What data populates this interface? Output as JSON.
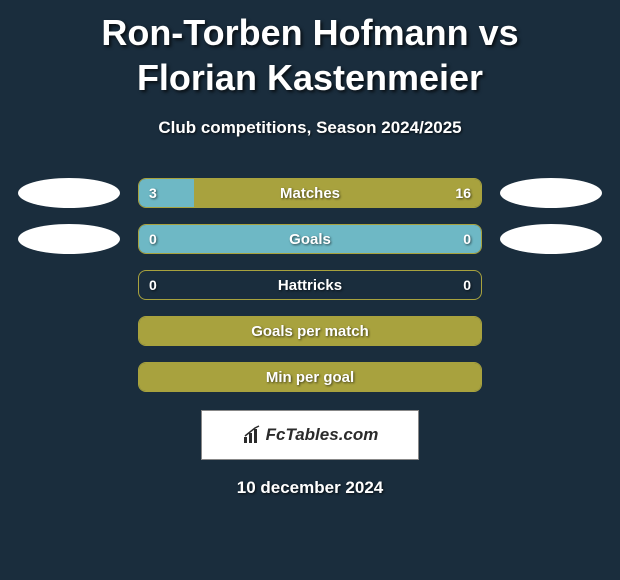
{
  "title": "Ron-Torben Hofmann vs Florian Kastenmeier",
  "subtitle": "Club competitions, Season 2024/2025",
  "date": "10 december 2024",
  "logo_text": "FcTables.com",
  "colors": {
    "background": "#1a2d3d",
    "bar_border": "#a8a23e",
    "bar_fill_primary": "#a8a23e",
    "bar_fill_highlight": "#6eb8c5",
    "ellipse_white": "#ffffff",
    "text": "#ffffff"
  },
  "stats": [
    {
      "label": "Matches",
      "left_val": "3",
      "right_val": "16",
      "left_pct": 16,
      "right_pct": 84,
      "left_ellipse": true,
      "right_ellipse": true,
      "fill_mode": "split"
    },
    {
      "label": "Goals",
      "left_val": "0",
      "right_val": "0",
      "left_pct": 0,
      "right_pct": 0,
      "left_ellipse": true,
      "right_ellipse": true,
      "fill_mode": "highlight_full"
    },
    {
      "label": "Hattricks",
      "left_val": "0",
      "right_val": "0",
      "left_pct": 0,
      "right_pct": 0,
      "left_ellipse": false,
      "right_ellipse": false,
      "fill_mode": "none"
    },
    {
      "label": "Goals per match",
      "left_val": "",
      "right_val": "",
      "left_pct": 0,
      "right_pct": 0,
      "left_ellipse": false,
      "right_ellipse": false,
      "fill_mode": "primary_full"
    },
    {
      "label": "Min per goal",
      "left_val": "",
      "right_val": "",
      "left_pct": 0,
      "right_pct": 0,
      "left_ellipse": false,
      "right_ellipse": false,
      "fill_mode": "primary_full"
    }
  ]
}
